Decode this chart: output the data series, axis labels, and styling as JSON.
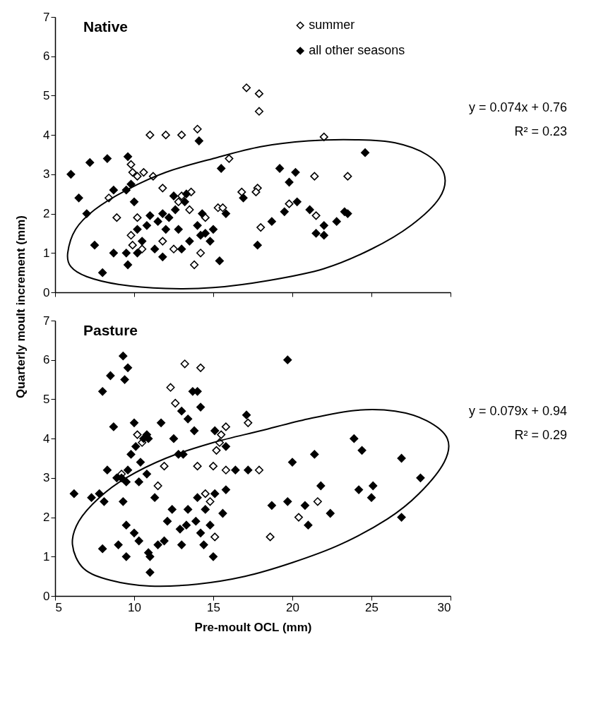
{
  "chart_data": [
    {
      "type": "scatter",
      "title": "Native",
      "ylabel": "Quarterly moult increment (mm)",
      "xlim": [
        5,
        30
      ],
      "xticks": [
        5,
        10,
        15,
        20,
        25,
        30
      ],
      "ylim": [
        0,
        7
      ],
      "yticks": [
        0,
        1,
        2,
        3,
        4,
        5,
        6,
        7
      ],
      "tick_labels": "y",
      "grid": false,
      "legend": "top right",
      "marker": "diamond",
      "annotations": [
        "y = 0.074x + 0.76",
        "R² = 0.23"
      ],
      "series": [
        {
          "name": "summer",
          "color": "#ffffff",
          "x": [
            17.1,
            17.9,
            17.9,
            11,
            12,
            13,
            14,
            22,
            16,
            9.8,
            9.9,
            10.2,
            10.6,
            11.2,
            11.8,
            8.4,
            13.6,
            13,
            17.8,
            17.7,
            21.4,
            23.5,
            19.8,
            21.5,
            15.3,
            15.6,
            16.8,
            8.9,
            10.2,
            9.8,
            9.9,
            11.8,
            12.5,
            14.2,
            13.8,
            18,
            14.5,
            13.5,
            12.8,
            10.5
          ],
          "values": [
            5.2,
            5.05,
            4.6,
            4,
            4,
            4,
            4.15,
            3.95,
            3.4,
            3.25,
            3.05,
            2.95,
            3.05,
            2.95,
            2.65,
            2.4,
            2.55,
            2.45,
            2.65,
            2.55,
            2.95,
            2.95,
            2.25,
            1.95,
            2.15,
            2.15,
            2.55,
            1.9,
            1.9,
            1.45,
            1.2,
            1.3,
            1.1,
            1.0,
            0.7,
            1.65,
            1.9,
            2.1,
            2.3,
            1.1
          ]
        },
        {
          "name": "all other seasons",
          "color": "#000000",
          "x": [
            6,
            7.2,
            8.3,
            9.6,
            14.1,
            24.6,
            6.5,
            7,
            7.5,
            8.7,
            9.5,
            9.8,
            10,
            10.2,
            10.5,
            10.8,
            11,
            11.3,
            11.5,
            11.8,
            12,
            12.2,
            12.5,
            12.6,
            12.8,
            13,
            13.2,
            13.5,
            14,
            14.3,
            14.5,
            14.8,
            15,
            15.5,
            15.4,
            15.8,
            16.9,
            17.8,
            18.7,
            19.2,
            19.5,
            19.8,
            20.2,
            20.3,
            21.1,
            21.5,
            22,
            22,
            22.8,
            23.3,
            23.5,
            8,
            8.7,
            9.6,
            9.5,
            10.2,
            11.8,
            13.3,
            14.2
          ],
          "values": [
            3,
            3.3,
            3.4,
            3.45,
            3.85,
            3.55,
            2.4,
            2,
            1.2,
            2.6,
            2.6,
            2.75,
            2.3,
            1.6,
            1.3,
            1.7,
            1.95,
            1.1,
            1.8,
            2.0,
            1.6,
            1.9,
            2.45,
            2.1,
            1.6,
            1.1,
            2.3,
            1.3,
            1.7,
            2.0,
            1.5,
            1.3,
            1.6,
            3.15,
            0.8,
            2.0,
            2.4,
            1.2,
            1.8,
            3.15,
            2.05,
            2.8,
            3.05,
            2.3,
            2.1,
            1.5,
            1.45,
            1.7,
            1.8,
            2.05,
            2.0,
            0.5,
            1.0,
            0.7,
            1.0,
            1.0,
            0.9,
            2.5,
            1.45
          ]
        }
      ]
    },
    {
      "type": "scatter",
      "title": "Pasture",
      "xlabel": "Pre-moult OCL (mm)",
      "xlim": [
        5,
        30
      ],
      "xticks": [
        5,
        10,
        15,
        20,
        25,
        30
      ],
      "ylim": [
        0,
        7
      ],
      "yticks": [
        0,
        1,
        2,
        3,
        4,
        5,
        6,
        7
      ],
      "grid": false,
      "marker": "diamond",
      "annotations": [
        "y = 0.079x + 0.94",
        "R² = 0.29"
      ],
      "series": [
        {
          "color": "#ffffff",
          "x": [
            13.2,
            14.2,
            12.3,
            12.6,
            10.2,
            15.8,
            15.5,
            15.2,
            15.4,
            17.2,
            11.5,
            14,
            15,
            15.8,
            17.9,
            9.2,
            11.9,
            14.5,
            15.1,
            18.6,
            20.4,
            21.6,
            14.8,
            10.5
          ],
          "values": [
            5.9,
            5.8,
            5.3,
            4.9,
            4.1,
            4.3,
            4.1,
            3.7,
            3.9,
            4.4,
            2.8,
            3.3,
            3.3,
            3.2,
            3.2,
            3.1,
            3.3,
            2.6,
            1.5,
            1.5,
            2.0,
            2.4,
            2.4,
            3.9
          ]
        },
        {
          "color": "#000000",
          "x": [
            9.3,
            8.5,
            9.6,
            9.4,
            8,
            13.7,
            14,
            13,
            13.4,
            14.2,
            13.8,
            15.1,
            8.7,
            10,
            11.7,
            10.8,
            10.6,
            10.9,
            12.5,
            15.8,
            17.1,
            19.7,
            10.1,
            9.8,
            10.4,
            9.2,
            9.6,
            8.3,
            8.9,
            9.5,
            10.3,
            10.8,
            13.1,
            12.8,
            16.4,
            17.2,
            6.2,
            7.3,
            7.8,
            8.1,
            9.3,
            11.3,
            12.4,
            13.4,
            14,
            14.5,
            15.1,
            15.8,
            15.6,
            9.5,
            10,
            10.3,
            10.9,
            11,
            11.5,
            11.9,
            12.1,
            13.3,
            13.9,
            12.9,
            14.8,
            14.4,
            15,
            8,
            9,
            9.5,
            11,
            18.7,
            19.7,
            20,
            20.8,
            21,
            21.4,
            21.8,
            22.4,
            23.9,
            24.4,
            24.2,
            25,
            25.1,
            26.9,
            26.9,
            28.1,
            13,
            14.2
          ],
          "values": [
            6.1,
            5.6,
            5.8,
            5.5,
            5.2,
            5.2,
            5.2,
            4.7,
            4.5,
            4.8,
            4.2,
            4.2,
            4.3,
            4.4,
            4.4,
            4.1,
            4.0,
            4.0,
            4.0,
            3.8,
            4.6,
            6.0,
            3.8,
            3.6,
            3.4,
            3.0,
            3.2,
            3.2,
            3.0,
            2.9,
            2.9,
            3.1,
            3.6,
            3.6,
            3.2,
            3.2,
            2.6,
            2.5,
            2.6,
            2.4,
            2.4,
            2.5,
            2.2,
            2.2,
            2.5,
            2.2,
            2.6,
            2.7,
            2.1,
            1.8,
            1.6,
            1.4,
            1.1,
            1.0,
            1.3,
            1.4,
            1.9,
            1.8,
            1.9,
            1.7,
            1.8,
            1.3,
            1.0,
            1.2,
            1.3,
            1.0,
            0.6,
            2.3,
            2.4,
            3.4,
            2.3,
            1.8,
            3.6,
            2.8,
            2.1,
            4.0,
            3.7,
            2.7,
            2.5,
            2.8,
            3.5,
            2.0,
            3.0,
            1.3,
            1.6
          ]
        }
      ]
    }
  ]
}
